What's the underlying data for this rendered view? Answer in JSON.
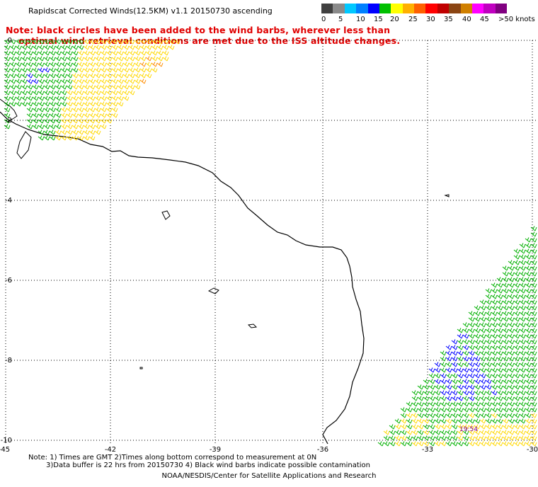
{
  "header": {
    "title": "Rapidscat Corrected Winds(12.5KM) v1.1 20150730 ascending"
  },
  "note": {
    "line1": "Note: black circles have been added to the wind barbs, wherever less than",
    "line2": "optimal wind retrieval conditions are met due to the ISS altitude changes."
  },
  "colorbar": {
    "colors": [
      "#404040",
      "#8a8a8a",
      "#00c8ff",
      "#0080ff",
      "#0000ff",
      "#00c000",
      "#ffff00",
      "#ffb000",
      "#ff6000",
      "#ff0000",
      "#c00000",
      "#8b4513",
      "#d08000",
      "#ff00ff",
      "#c000c0",
      "#800080"
    ],
    "labels": [
      "0",
      "5",
      "10",
      "15",
      "20",
      "25",
      "30",
      "35",
      "40",
      "45",
      ">50 knots"
    ]
  },
  "axes": {
    "lon_labels": [
      "-45",
      "-42",
      "-39",
      "-36",
      "-33",
      "-30"
    ],
    "lat_labels": [
      "0",
      "-2",
      "-4",
      "-6",
      "-8",
      "-10"
    ]
  },
  "annotation": {
    "time": "19:54"
  },
  "footer": {
    "line1": "Note: 1) Times are GMT 2)Times along bottom correspond to measurement at 0N",
    "line2": "3)Data buffer is 22 hrs from 20150730 4) Black wind barbs indicate possible contamination",
    "line3": "NOAA/NESDIS/Center for Satellite Applications and Research"
  }
}
